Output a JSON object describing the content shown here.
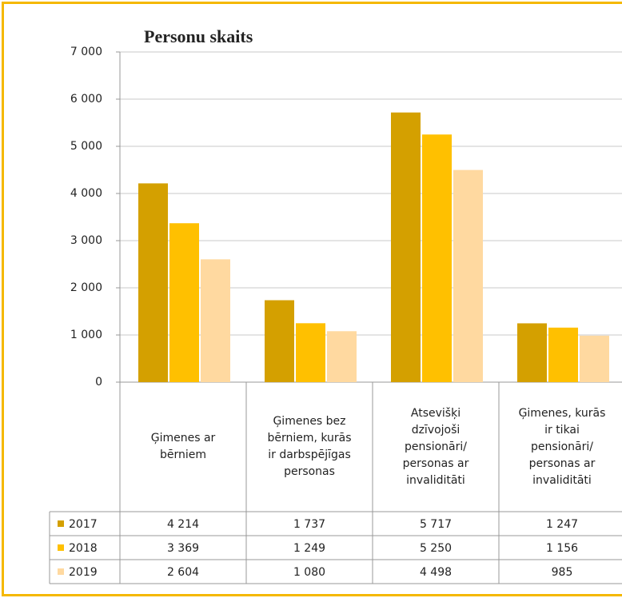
{
  "chart_data": {
    "type": "bar",
    "title": "Personu skaits",
    "categories": [
      "Ģimenes ar bērniem",
      "Ģimenes bez bērniem, kurās ir darbspējīgas personas",
      "Atsevišķi dzīvojoši pensionāri/ personas ar invaliditāti",
      "Ģimenes, kurās ir tikai pensionāri/ personas ar invaliditāti"
    ],
    "series": [
      {
        "name": "2017",
        "color": "#d4a000",
        "values": [
          4214,
          1737,
          5717,
          1247
        ],
        "value_labels": [
          "4 214",
          "1 737",
          "5 717",
          "1 247"
        ]
      },
      {
        "name": "2018",
        "color": "#ffc000",
        "values": [
          3369,
          1249,
          5250,
          1156
        ],
        "value_labels": [
          "3 369",
          "1 249",
          "5 250",
          "1 156"
        ]
      },
      {
        "name": "2019",
        "color": "#ffd9a0",
        "values": [
          2604,
          1080,
          4498,
          985
        ],
        "value_labels": [
          "2 604",
          "1 080",
          "4 498",
          "985"
        ]
      }
    ],
    "ylim": [
      0,
      7000
    ],
    "yticks": [
      0,
      {
        "value": 1000,
        "label": "1 000"
      },
      {
        "value": 2000,
        "label": "2 000"
      },
      {
        "value": 3000,
        "label": "3 000"
      },
      {
        "value": 4000,
        "label": "4 000"
      },
      {
        "value": 5000,
        "label": "5 000"
      },
      {
        "value": 6000,
        "label": "6 000"
      },
      {
        "value": 7000,
        "label": "7 000"
      }
    ],
    "grid": true
  }
}
